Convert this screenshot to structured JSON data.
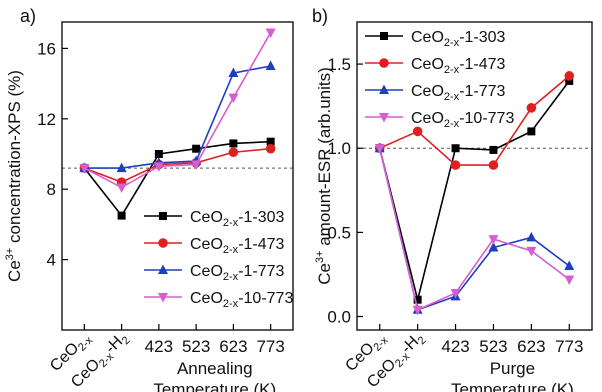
{
  "chart_data": [
    {
      "panel_label": "a)",
      "type": "line",
      "ylabel": {
        "pre": "Ce",
        "sup": "3+",
        "post": " concentration-XPS  (%)"
      },
      "xlabel": [
        "Annealing",
        "Temperature (K)"
      ],
      "categories": [
        {
          "main": "CeO",
          "sub": "2-x",
          "tail": ""
        },
        {
          "main": "CeO",
          "sub": "2-x",
          "tail": "-H",
          "sub2": "2"
        },
        {
          "main": "423"
        },
        {
          "main": "523"
        },
        {
          "main": "623"
        },
        {
          "main": "773"
        }
      ],
      "yticks": [
        4,
        8,
        12,
        16
      ],
      "ylim": [
        0,
        17.5
      ],
      "reference_line": 9.2,
      "legend_position": "bottom-right",
      "series": [
        {
          "name_main": "CeO",
          "name_sub": "2-x",
          "name_tail": "-1-303",
          "color": "#000000",
          "marker": "square",
          "values": [
            9.2,
            6.5,
            10.0,
            10.3,
            10.6,
            10.7
          ]
        },
        {
          "name_main": "CeO",
          "name_sub": "2-x",
          "name_tail": "-1-473",
          "color": "#e02020",
          "marker": "circle",
          "values": [
            9.2,
            8.4,
            9.4,
            9.5,
            10.1,
            10.3
          ]
        },
        {
          "name_main": "CeO",
          "name_sub": "2-x",
          "name_tail": "-1-773",
          "color": "#1f3fbf",
          "marker": "triangle-up",
          "values": [
            9.2,
            9.2,
            9.5,
            9.6,
            14.6,
            15.0
          ]
        },
        {
          "name_main": "CeO",
          "name_sub": "2-x",
          "name_tail": "-10-773",
          "color": "#d65fd0",
          "marker": "triangle-down",
          "values": [
            9.2,
            8.1,
            9.3,
            9.4,
            13.2,
            16.9
          ]
        }
      ]
    },
    {
      "panel_label": "b)",
      "type": "line",
      "ylabel": {
        "pre": "Ce",
        "sup": "3+",
        "post": " amount-ESR  (arb.units)"
      },
      "xlabel": [
        "Purge",
        "Temperature (K)"
      ],
      "categories": [
        {
          "main": "CeO",
          "sub": "2-x",
          "tail": ""
        },
        {
          "main": "CeO",
          "sub": "2-x",
          "tail": "-H",
          "sub2": "2"
        },
        {
          "main": "423"
        },
        {
          "main": "523"
        },
        {
          "main": "623"
        },
        {
          "main": "773"
        }
      ],
      "yticks": [
        0.0,
        0.5,
        1.0,
        1.5
      ],
      "ytick_labels": [
        "0.0",
        "0.5",
        "1.0",
        "1.5"
      ],
      "ylim": [
        -0.08,
        1.75
      ],
      "reference_line": 1.0,
      "legend_position": "top-left",
      "series": [
        {
          "name_main": "CeO",
          "name_sub": "2-x",
          "name_tail": "-1-303",
          "color": "#000000",
          "marker": "square",
          "values": [
            1.0,
            0.1,
            1.0,
            0.99,
            1.1,
            1.4
          ]
        },
        {
          "name_main": "CeO",
          "name_sub": "2-x",
          "name_tail": "-1-473",
          "color": "#e02020",
          "marker": "circle",
          "values": [
            1.0,
            1.1,
            0.9,
            0.9,
            1.24,
            1.43
          ]
        },
        {
          "name_main": "CeO",
          "name_sub": "2-x",
          "name_tail": "-1-773",
          "color": "#1f3fbf",
          "marker": "triangle-up",
          "values": [
            1.0,
            0.04,
            0.12,
            0.41,
            0.47,
            0.3
          ]
        },
        {
          "name_main": "CeO",
          "name_sub": "2-x",
          "name_tail": "-10-773",
          "color": "#d65fd0",
          "marker": "triangle-down",
          "values": [
            1.0,
            0.04,
            0.14,
            0.46,
            0.39,
            0.22
          ]
        }
      ]
    }
  ]
}
